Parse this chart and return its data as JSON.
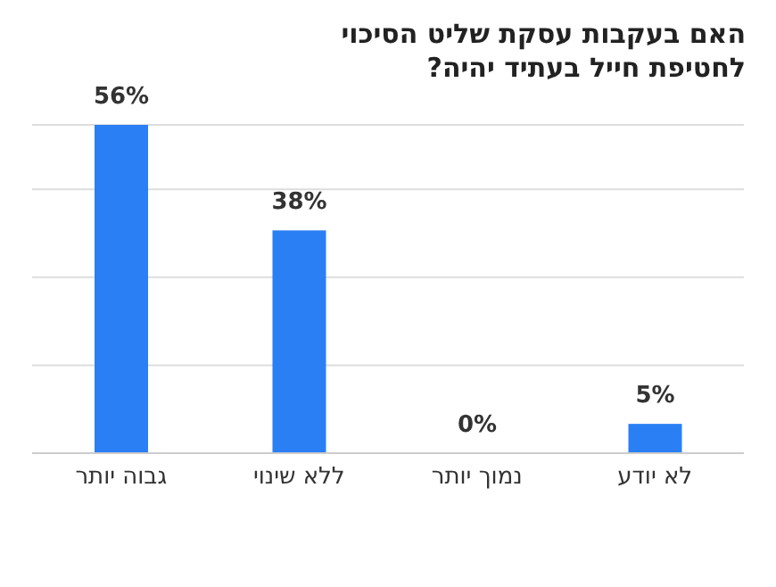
{
  "chart_data": {
    "type": "bar",
    "title": "האם בעקבות עסקת שליט הסיכוי לחטיפת חייל בעתיד יהיה?",
    "categories": [
      "גבוה יותר",
      "ללא שינוי",
      "נמוך יותר",
      "לא יודע"
    ],
    "values": [
      56,
      38,
      0,
      5
    ],
    "value_labels": [
      "56%",
      "38%",
      "0%",
      "5%"
    ],
    "color": "#2a7ff5",
    "grid": "y",
    "tick_labels": "x"
  }
}
